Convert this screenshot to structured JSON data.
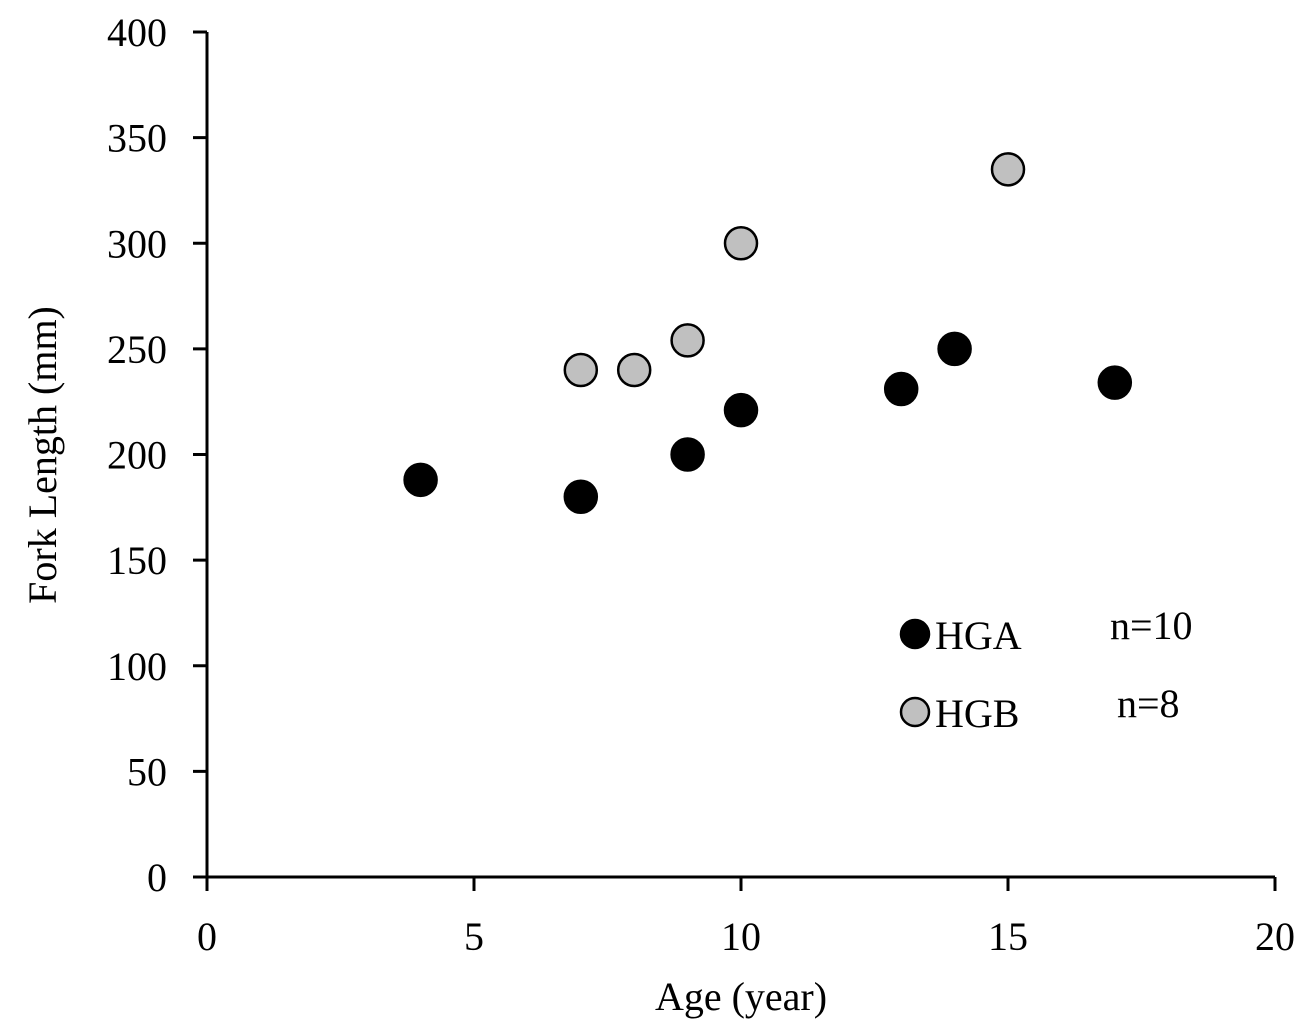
{
  "chart_data": {
    "type": "scatter",
    "title": "",
    "xlabel": "Age (year)",
    "ylabel": "Fork Length (mm)",
    "xlim": [
      0,
      20
    ],
    "ylim": [
      0,
      400
    ],
    "xticks": [
      "0",
      "5",
      "10",
      "15",
      "20"
    ],
    "yticks": [
      "0",
      "50",
      "100",
      "150",
      "200",
      "250",
      "300",
      "350",
      "400"
    ],
    "grid": false,
    "legend_position": "inside-lower-right",
    "series": [
      {
        "name": "HGA",
        "count_label": "n=10",
        "color": "#000000",
        "points": [
          {
            "x": 4,
            "y": 188
          },
          {
            "x": 7,
            "y": 180
          },
          {
            "x": 9,
            "y": 200
          },
          {
            "x": 10,
            "y": 221
          },
          {
            "x": 13,
            "y": 231
          },
          {
            "x": 14,
            "y": 250
          },
          {
            "x": 17,
            "y": 234
          }
        ]
      },
      {
        "name": "HGB",
        "count_label": "n=8",
        "color": "#c0c0c0",
        "points": [
          {
            "x": 7,
            "y": 240
          },
          {
            "x": 8,
            "y": 240
          },
          {
            "x": 9,
            "y": 254
          },
          {
            "x": 10,
            "y": 300
          },
          {
            "x": 15,
            "y": 335
          }
        ]
      }
    ]
  }
}
